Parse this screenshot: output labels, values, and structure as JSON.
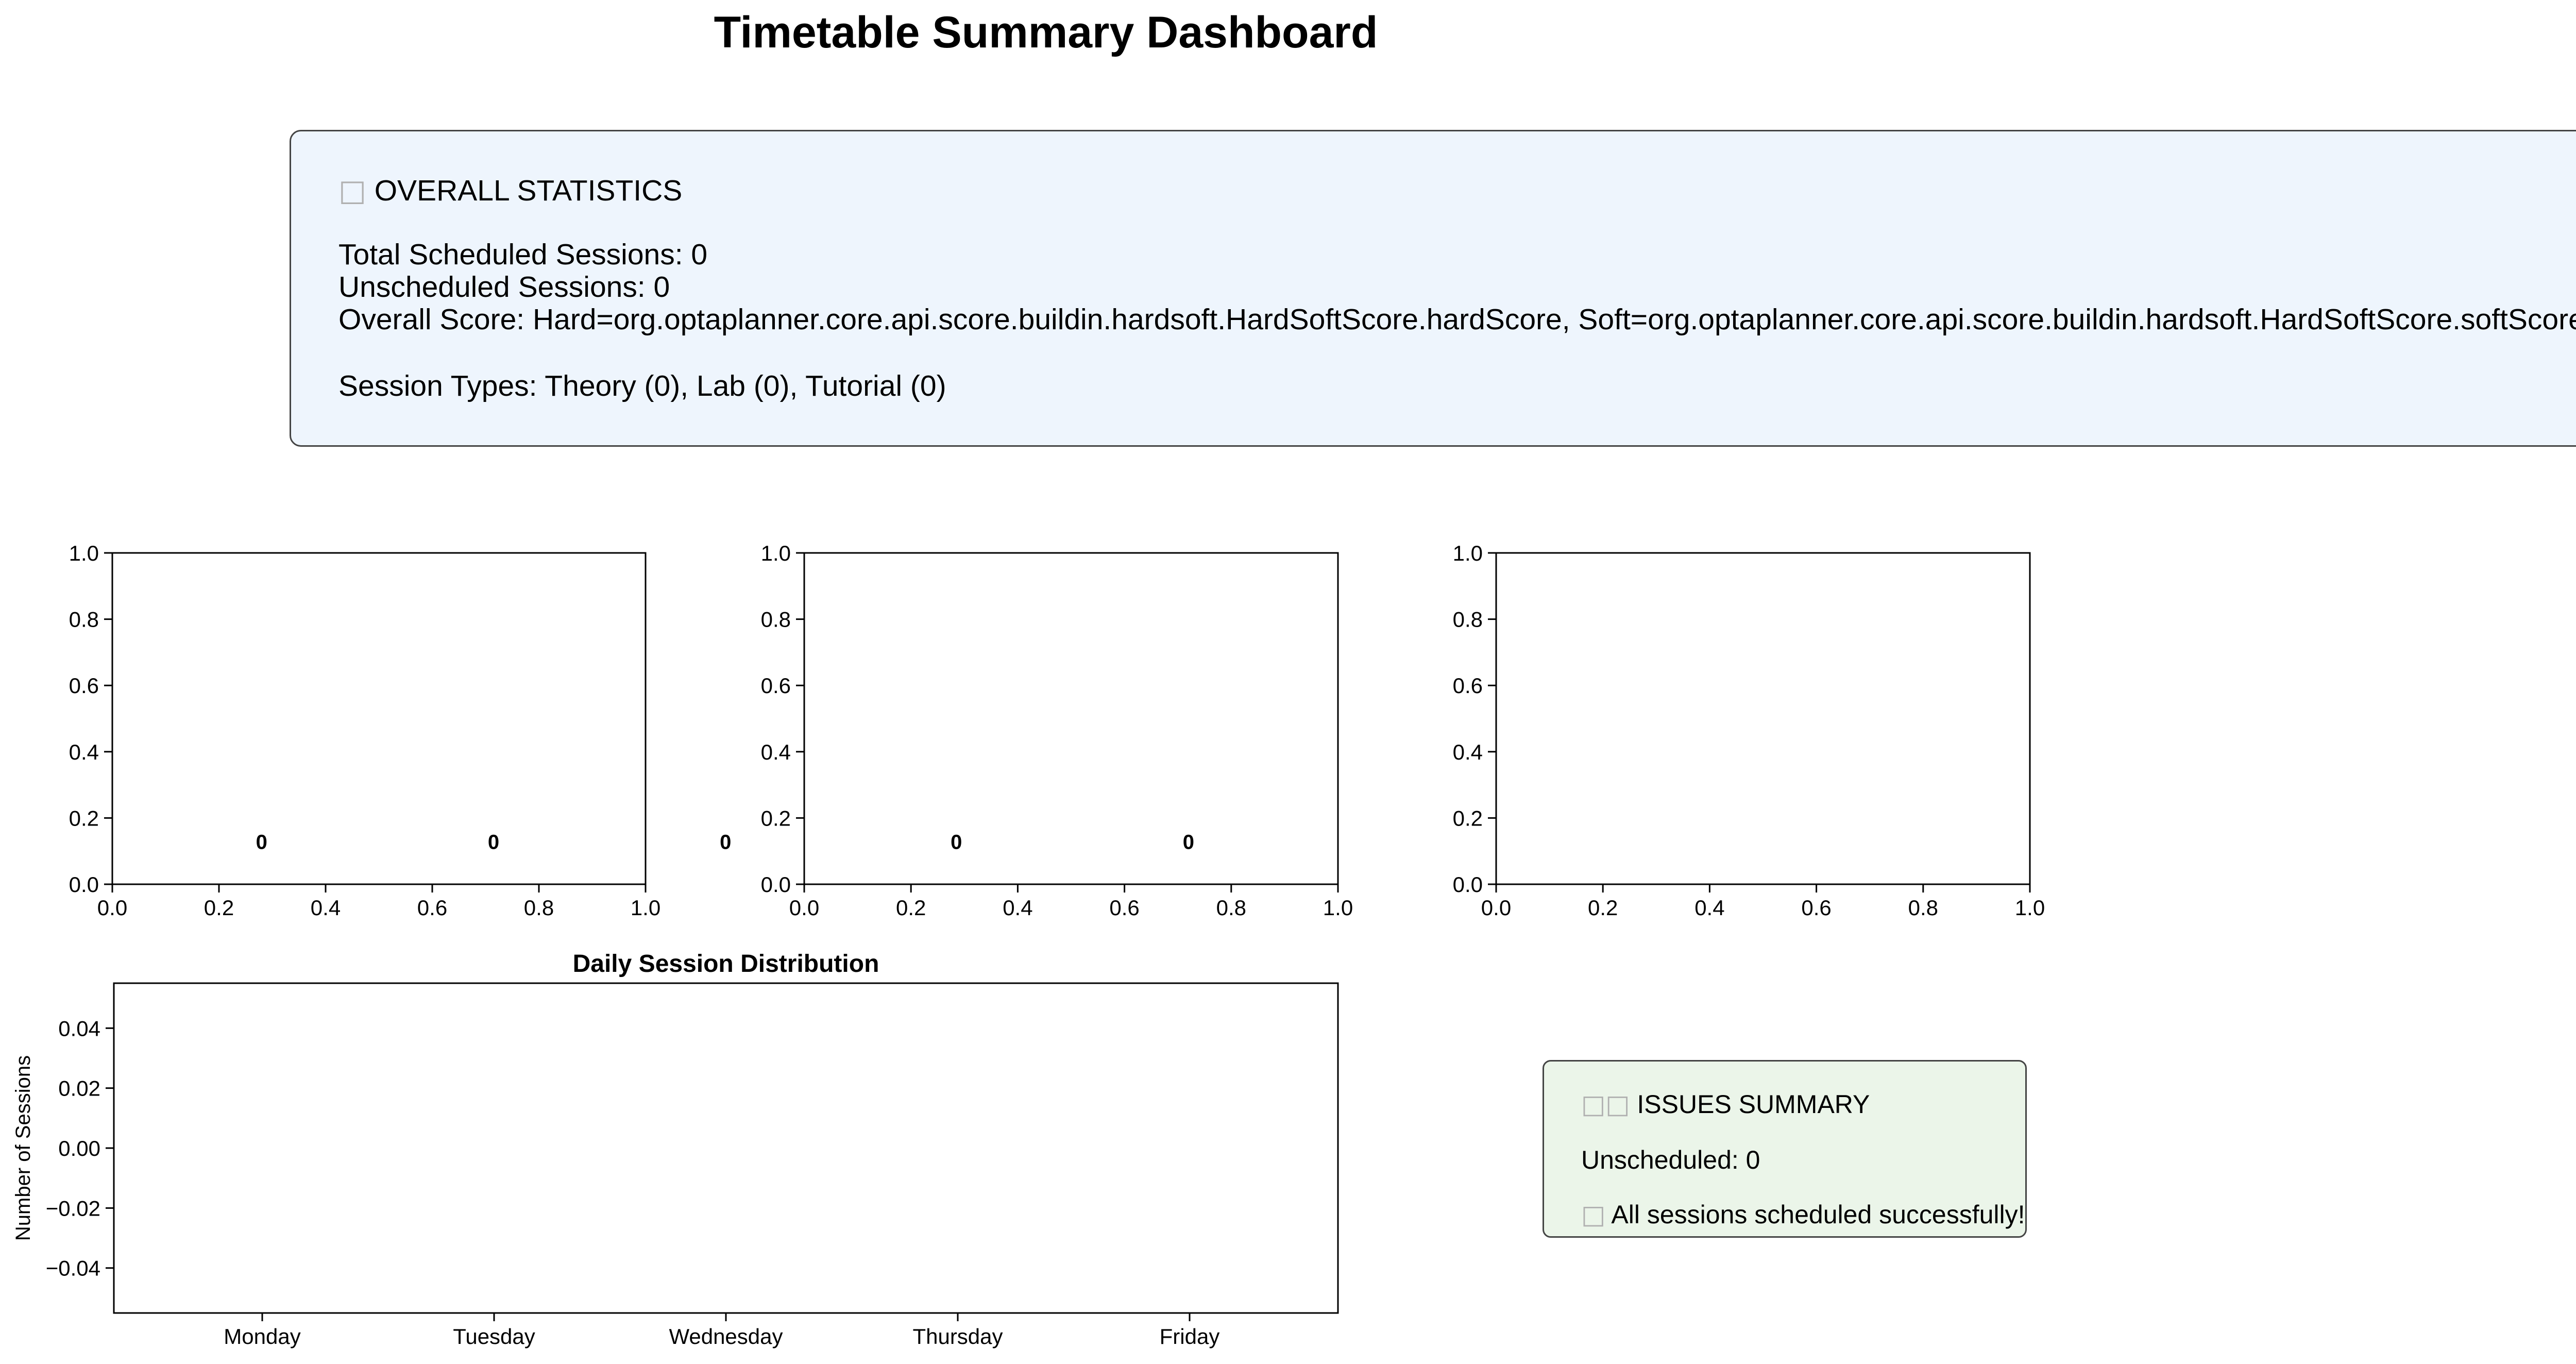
{
  "dashboard": {
    "title": "Timetable Summary Dashboard"
  },
  "overall_stats": {
    "icon": "chart-icon",
    "heading": "OVERALL STATISTICS",
    "total_scheduled": "Total Scheduled Sessions: 0",
    "unscheduled": "Unscheduled Sessions: 0",
    "overall_score": "Overall Score: Hard=org.optaplanner.core.api.score.buildin.hardsoft.HardSoftScore.hardScore, Soft=org.optaplanner.core.api.score.buildin.hardsoft.HardSoftScore.softScore",
    "session_types": "Session Types: Theory (0), Lab (0), Tutorial (0)",
    "background_color": "#eef5fd"
  },
  "issues_summary": {
    "icon": "warning-icon",
    "heading": "ISSUES SUMMARY",
    "unscheduled": "Unscheduled: 0",
    "status_icon": "check-icon",
    "status": "All sessions scheduled successfully!",
    "background_color": "#ebf5e9"
  },
  "chart_data": [
    {
      "type": "bar",
      "title": "",
      "xlabel": "",
      "ylabel": "",
      "xlim": [
        0.0,
        1.0
      ],
      "ylim": [
        0.0,
        1.0
      ],
      "xticks": [
        "0.0",
        "0.2",
        "0.4",
        "0.6",
        "0.8",
        "1.0"
      ],
      "yticks": [
        "0.0",
        "0.2",
        "0.4",
        "0.6",
        "0.8",
        "1.0"
      ],
      "annotations": [
        {
          "text": "0",
          "x": 0.28,
          "y": 0.13
        },
        {
          "text": "0",
          "x": 0.715,
          "y": 0.13
        },
        {
          "text": "0",
          "x": 1.15,
          "y": 0.13
        }
      ],
      "grid": false
    },
    {
      "type": "bar",
      "title": "",
      "xlabel": "",
      "ylabel": "",
      "xlim": [
        0.0,
        1.0
      ],
      "ylim": [
        0.0,
        1.0
      ],
      "xticks": [
        "0.0",
        "0.2",
        "0.4",
        "0.6",
        "0.8",
        "1.0"
      ],
      "yticks": [
        "0.0",
        "0.2",
        "0.4",
        "0.6",
        "0.8",
        "1.0"
      ],
      "annotations": [
        {
          "text": "0",
          "x": 0.285,
          "y": 0.13
        },
        {
          "text": "0",
          "x": 0.72,
          "y": 0.13
        }
      ],
      "grid": false
    },
    {
      "type": "pie",
      "title": "",
      "xlabel": "",
      "ylabel": "",
      "xlim": [
        0.0,
        1.0
      ],
      "ylim": [
        0.0,
        1.0
      ],
      "xticks": [
        "0.0",
        "0.2",
        "0.4",
        "0.6",
        "0.8",
        "1.0"
      ],
      "yticks": [
        "0.0",
        "0.2",
        "0.4",
        "0.6",
        "0.8",
        "1.0"
      ],
      "annotations": [],
      "grid": false
    },
    {
      "type": "bar",
      "title": "Daily Session Distribution",
      "xlabel": "",
      "ylabel": "Number of Sessions",
      "categories": [
        "Monday",
        "Tuesday",
        "Wednesday",
        "Thursday",
        "Friday"
      ],
      "values": [
        0,
        0,
        0,
        0,
        0
      ],
      "ylim": [
        -0.055,
        0.055
      ],
      "yticks": [
        "0.04",
        "0.02",
        "0.00",
        "−0.02",
        "−0.04"
      ],
      "ytick_values": [
        0.04,
        0.02,
        0.0,
        -0.02,
        -0.04
      ],
      "grid": false
    }
  ]
}
